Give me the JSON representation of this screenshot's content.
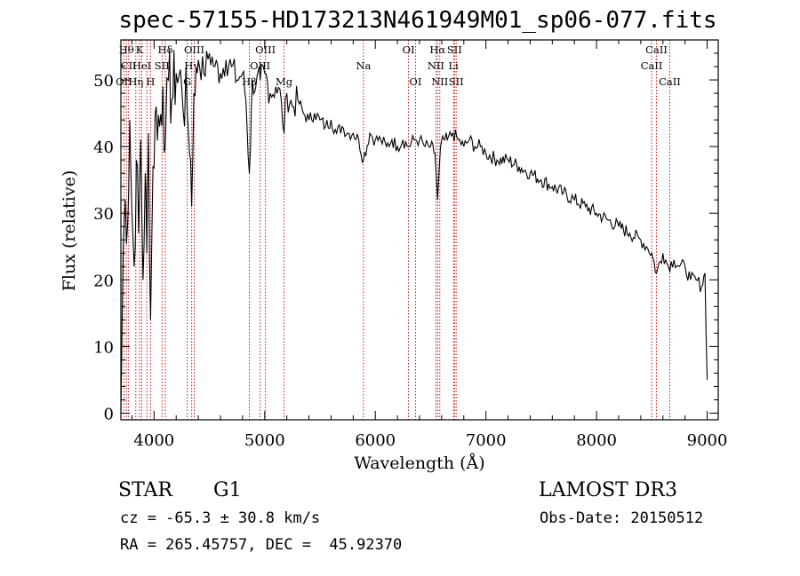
{
  "chart_data": {
    "type": "line",
    "title": "spec-57155-HD173213N461949M01_sp06-077.fits",
    "xlabel": "Wavelength (Å)",
    "ylabel": "Flux (relative)",
    "xlim": [
      3700,
      9100
    ],
    "ylim": [
      -1,
      56
    ],
    "xticks": [
      4000,
      5000,
      6000,
      7000,
      8000,
      9000
    ],
    "yticks": [
      0,
      10,
      20,
      30,
      40,
      50
    ],
    "series": [
      {
        "name": "spectrum",
        "x": [
          3700,
          3720,
          3740,
          3760,
          3780,
          3800,
          3820,
          3840,
          3860,
          3880,
          3900,
          3920,
          3934,
          3950,
          3968,
          3990,
          4020,
          4050,
          4080,
          4102,
          4130,
          4160,
          4200,
          4250,
          4300,
          4330,
          4340,
          4360,
          4400,
          4450,
          4500,
          4550,
          4600,
          4650,
          4700,
          4750,
          4800,
          4830,
          4861,
          4890,
          4920,
          4960,
          5000,
          5050,
          5100,
          5150,
          5175,
          5200,
          5250,
          5300,
          5350,
          5400,
          5450,
          5500,
          5550,
          5600,
          5650,
          5700,
          5750,
          5800,
          5850,
          5893,
          5950,
          6000,
          6050,
          6100,
          6150,
          6200,
          6250,
          6300,
          6350,
          6400,
          6450,
          6500,
          6540,
          6563,
          6590,
          6620,
          6650,
          6700,
          6750,
          6800,
          6850,
          6900,
          6950,
          7000,
          7100,
          7200,
          7300,
          7400,
          7500,
          7600,
          7700,
          7800,
          7900,
          8000,
          8100,
          8200,
          8300,
          8400,
          8450,
          8500,
          8542,
          8600,
          8650,
          8700,
          8750,
          8800,
          8850,
          8900,
          8950,
          8980,
          9000
        ],
        "y": [
          0,
          24,
          32,
          28,
          44,
          30,
          22,
          38,
          27,
          41,
          20,
          36,
          24,
          42,
          14,
          37,
          46,
          43,
          49,
          40,
          50,
          47,
          51,
          49,
          45,
          38,
          31,
          48,
          53,
          51,
          54,
          52,
          51,
          53,
          52,
          50,
          51,
          47,
          36,
          50,
          49,
          50,
          51,
          48,
          49,
          47,
          42,
          48,
          46,
          47,
          45,
          44,
          45,
          44,
          43,
          44,
          42,
          43,
          42,
          42,
          41,
          38,
          42,
          41,
          41,
          40,
          41,
          40,
          41,
          40,
          41,
          41,
          40,
          40,
          39,
          32,
          40,
          41,
          41,
          42,
          41,
          40,
          41,
          40,
          40,
          39,
          38,
          38,
          37,
          36,
          35,
          34,
          33,
          32,
          31,
          30,
          29,
          28,
          27,
          26,
          25,
          24,
          21,
          24,
          22,
          23,
          22,
          22,
          20,
          20,
          19,
          21,
          5
        ]
      }
    ],
    "line_markers": [
      {
        "wavelength": 3727,
        "labels": [
          "OII"
        ],
        "row": 3
      },
      {
        "wavelength": 3750,
        "labels": [
          "Hθ"
        ],
        "row": 1
      },
      {
        "wavelength": 3770,
        "labels": [
          "CII"
        ],
        "row": 2
      },
      {
        "wavelength": 3835,
        "labels": [
          "Hη"
        ],
        "row": 3
      },
      {
        "wavelength": 3869,
        "labels": [
          "K"
        ],
        "row": 1
      },
      {
        "wavelength": 3889,
        "labels": [
          "HeI"
        ],
        "row": 2
      },
      {
        "wavelength": 3934,
        "labels": [],
        "row": 0
      },
      {
        "wavelength": 3968,
        "labels": [
          "H"
        ],
        "row": 3
      },
      {
        "wavelength": 4072,
        "labels": [
          "SII"
        ],
        "row": 2
      },
      {
        "wavelength": 4102,
        "labels": [
          "Hδ"
        ],
        "row": 1
      },
      {
        "wavelength": 4300,
        "labels": [
          "G"
        ],
        "row": 3
      },
      {
        "wavelength": 4340,
        "labels": [
          "Hγ"
        ],
        "row": 2
      },
      {
        "wavelength": 4363,
        "labels": [
          "OIII"
        ],
        "row": 1
      },
      {
        "wavelength": 4861,
        "labels": [
          "Hβ"
        ],
        "row": 3
      },
      {
        "wavelength": 4959,
        "labels": [
          "OIII"
        ],
        "row": 2
      },
      {
        "wavelength": 5007,
        "labels": [
          "OIII"
        ],
        "row": 1
      },
      {
        "wavelength": 5175,
        "labels": [
          "Mg"
        ],
        "row": 3
      },
      {
        "wavelength": 5893,
        "labels": [
          "Na"
        ],
        "row": 2
      },
      {
        "wavelength": 6300,
        "labels": [
          "OI"
        ],
        "row": 1
      },
      {
        "wavelength": 6363,
        "labels": [
          "OI"
        ],
        "row": 3
      },
      {
        "wavelength": 6548,
        "labels": [
          "NII"
        ],
        "row": 2
      },
      {
        "wavelength": 6563,
        "labels": [
          "Hα"
        ],
        "row": 1
      },
      {
        "wavelength": 6583,
        "labels": [
          "NII"
        ],
        "row": 3
      },
      {
        "wavelength": 6707,
        "labels": [
          "Li"
        ],
        "row": 2
      },
      {
        "wavelength": 6716,
        "labels": [
          "SII"
        ],
        "row": 1
      },
      {
        "wavelength": 6731,
        "labels": [
          "SII"
        ],
        "row": 3
      },
      {
        "wavelength": 8498,
        "labels": [
          "CaII"
        ],
        "row": 2
      },
      {
        "wavelength": 8542,
        "labels": [
          "CaII"
        ],
        "row": 1
      },
      {
        "wavelength": 8662,
        "labels": [
          "CaII"
        ],
        "row": 3
      }
    ],
    "colors": {
      "spectrum": "#000000",
      "marker": "#c00000",
      "axis": "#000000"
    }
  },
  "info": {
    "class": "STAR",
    "subclass": "G1",
    "survey": "LAMOST DR3",
    "redshift": "cz = -65.3 ± 30.8 km/s",
    "obs_date": "Obs-Date: 20150512",
    "coords": "RA = 265.45757, DEC =  45.92370"
  }
}
